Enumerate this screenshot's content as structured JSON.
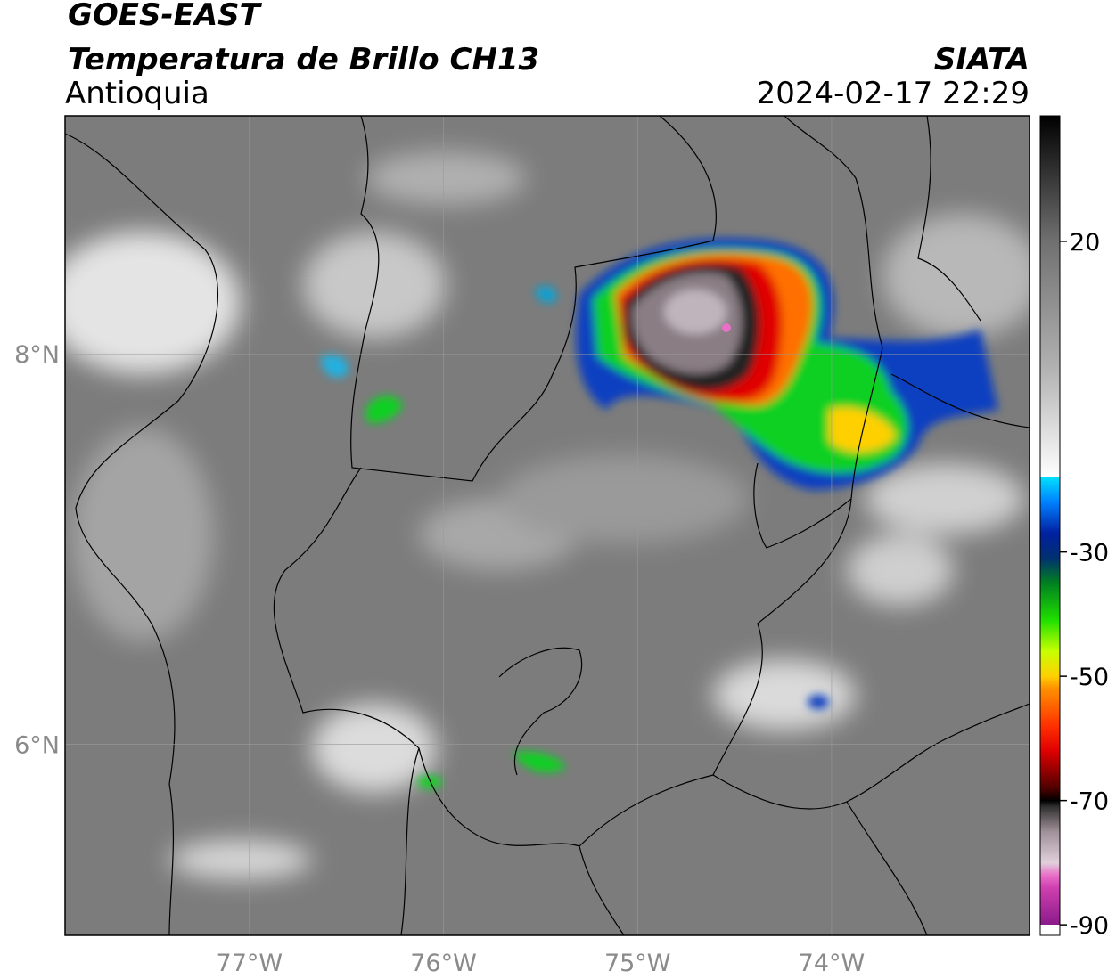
{
  "chart_data": {
    "type": "map",
    "title": "GOES-EAST",
    "subtitle": "Temperatura de Brillo CH13",
    "region": "Antioquia",
    "source": "SIATA",
    "datetime": "2024-02-17 22:29",
    "xlim": [
      -77.95,
      -72.98
    ],
    "ylim": [
      5.02,
      9.22
    ],
    "xticks": [
      {
        "value": -77,
        "label": "77°W"
      },
      {
        "value": -76,
        "label": "76°W"
      },
      {
        "value": -75,
        "label": "75°W"
      },
      {
        "value": -74,
        "label": "74°W"
      }
    ],
    "yticks": [
      {
        "value": 6,
        "label": "6°N"
      },
      {
        "value": 8,
        "label": "8°N"
      }
    ],
    "grid": true,
    "colorbar": {
      "lim": [
        -91.7,
        40.2
      ],
      "ticks": [
        20,
        -30,
        -50,
        -70,
        -90
      ],
      "colormap": [
        {
          "value": -91.7,
          "color": "#ffffff"
        },
        {
          "value": -90,
          "color": "#ffffff"
        },
        {
          "value": -90,
          "color": "#8a1a8a"
        },
        {
          "value": -84,
          "color": "#d040b0"
        },
        {
          "value": -82,
          "color": "#e870c8"
        },
        {
          "value": -80,
          "color": "#e0d0dc"
        },
        {
          "value": -75,
          "color": "#a09098"
        },
        {
          "value": -71,
          "color": "#303030"
        },
        {
          "value": -70,
          "color": "#000000"
        },
        {
          "value": -68,
          "color": "#500000"
        },
        {
          "value": -62,
          "color": "#e00000"
        },
        {
          "value": -58,
          "color": "#ff3000"
        },
        {
          "value": -52,
          "color": "#ff9000"
        },
        {
          "value": -50,
          "color": "#ffd000"
        },
        {
          "value": -46,
          "color": "#c8ff00"
        },
        {
          "value": -41,
          "color": "#20e000"
        },
        {
          "value": -35,
          "color": "#008020"
        },
        {
          "value": -31,
          "color": "#003070"
        },
        {
          "value": -27,
          "color": "#0020a0"
        },
        {
          "value": -22,
          "color": "#0080ff"
        },
        {
          "value": -18,
          "color": "#00e0ff"
        },
        {
          "value": -18,
          "color": "#ffffff"
        },
        {
          "value": 0,
          "color": "#b0b0b0"
        },
        {
          "value": 20,
          "color": "#707070"
        },
        {
          "value": 40.2,
          "color": "#000000"
        }
      ]
    }
  }
}
